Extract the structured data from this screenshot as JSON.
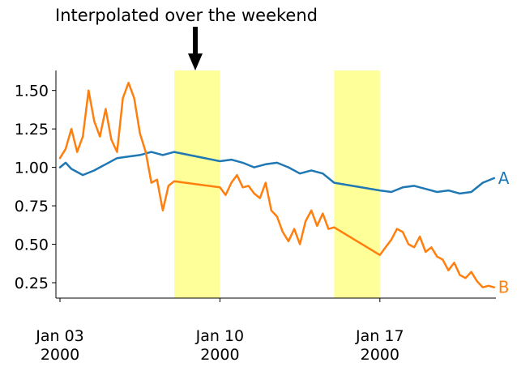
{
  "chart_data": {
    "type": "line",
    "annotation": {
      "text": "Interpolated over the weekend",
      "points_to": "2000-01-08"
    },
    "x_range": [
      "2000-01-03",
      "2000-01-22"
    ],
    "ylim": [
      0.15,
      1.63
    ],
    "yticks": [
      0.25,
      0.5,
      0.75,
      1.0,
      1.25,
      1.5
    ],
    "ytick_labels": [
      "0.25",
      "0.50",
      "0.75",
      "1.00",
      "1.25",
      "1.50"
    ],
    "xticks": [
      {
        "x": "2000-01-03",
        "line1": "Jan 03",
        "line2": "2000"
      },
      {
        "x": "2000-01-10",
        "line1": "Jan 10",
        "line2": "2000"
      },
      {
        "x": "2000-01-17",
        "line1": "Jan 17",
        "line2": "2000"
      }
    ],
    "shaded_ranges": [
      {
        "start": "2000-01-08",
        "end": "2000-01-10",
        "color": "#ffff99"
      },
      {
        "start": "2000-01-15",
        "end": "2000-01-17",
        "color": "#ffff99"
      }
    ],
    "series": [
      {
        "name": "A",
        "color": "#1f77b4",
        "x": [
          "2000-01-03",
          "2000-01-03 06:00",
          "2000-01-03 12:00",
          "2000-01-04",
          "2000-01-04 12:00",
          "2000-01-05",
          "2000-01-05 12:00",
          "2000-01-06",
          "2000-01-06 12:00",
          "2000-01-07",
          "2000-01-07 12:00",
          "2000-01-08",
          "2000-01-10",
          "2000-01-10 12:00",
          "2000-01-11",
          "2000-01-11 12:00",
          "2000-01-12",
          "2000-01-12 12:00",
          "2000-01-13",
          "2000-01-13 12:00",
          "2000-01-14",
          "2000-01-14 12:00",
          "2000-01-15",
          "2000-01-17",
          "2000-01-17 12:00",
          "2000-01-18",
          "2000-01-18 12:00",
          "2000-01-19",
          "2000-01-19 12:00",
          "2000-01-20",
          "2000-01-20 12:00",
          "2000-01-21",
          "2000-01-21 12:00",
          "2000-01-22"
        ],
        "values": [
          1.0,
          1.03,
          0.99,
          0.95,
          0.98,
          1.02,
          1.06,
          1.07,
          1.08,
          1.1,
          1.08,
          1.1,
          1.04,
          1.05,
          1.03,
          1.0,
          1.02,
          1.03,
          1.0,
          0.96,
          0.98,
          0.96,
          0.9,
          0.85,
          0.84,
          0.87,
          0.88,
          0.86,
          0.84,
          0.85,
          0.83,
          0.84,
          0.9,
          0.93
        ]
      },
      {
        "name": "B",
        "color": "#ff7f0e",
        "x": [
          "2000-01-03",
          "2000-01-03 06:00",
          "2000-01-03 12:00",
          "2000-01-03 18:00",
          "2000-01-04",
          "2000-01-04 06:00",
          "2000-01-04 12:00",
          "2000-01-04 18:00",
          "2000-01-05",
          "2000-01-05 06:00",
          "2000-01-05 12:00",
          "2000-01-05 18:00",
          "2000-01-06",
          "2000-01-06 06:00",
          "2000-01-06 12:00",
          "2000-01-06 18:00",
          "2000-01-07",
          "2000-01-07 06:00",
          "2000-01-07 12:00",
          "2000-01-07 18:00",
          "2000-01-08",
          "2000-01-10",
          "2000-01-10 06:00",
          "2000-01-10 12:00",
          "2000-01-10 18:00",
          "2000-01-11",
          "2000-01-11 06:00",
          "2000-01-11 12:00",
          "2000-01-11 18:00",
          "2000-01-12",
          "2000-01-12 06:00",
          "2000-01-12 12:00",
          "2000-01-12 18:00",
          "2000-01-13",
          "2000-01-13 06:00",
          "2000-01-13 12:00",
          "2000-01-13 18:00",
          "2000-01-14",
          "2000-01-14 06:00",
          "2000-01-14 12:00",
          "2000-01-14 18:00",
          "2000-01-15",
          "2000-01-17",
          "2000-01-17 06:00",
          "2000-01-17 12:00",
          "2000-01-17 18:00",
          "2000-01-18",
          "2000-01-18 06:00",
          "2000-01-18 12:00",
          "2000-01-18 18:00",
          "2000-01-19",
          "2000-01-19 06:00",
          "2000-01-19 12:00",
          "2000-01-19 18:00",
          "2000-01-20",
          "2000-01-20 06:00",
          "2000-01-20 12:00",
          "2000-01-20 18:00",
          "2000-01-21",
          "2000-01-21 06:00",
          "2000-01-21 12:00",
          "2000-01-21 18:00",
          "2000-01-22"
        ],
        "values": [
          1.06,
          1.12,
          1.25,
          1.1,
          1.2,
          1.5,
          1.3,
          1.2,
          1.38,
          1.18,
          1.1,
          1.45,
          1.55,
          1.45,
          1.22,
          1.1,
          0.9,
          0.92,
          0.72,
          0.88,
          0.91,
          0.87,
          0.82,
          0.9,
          0.95,
          0.87,
          0.88,
          0.83,
          0.8,
          0.9,
          0.72,
          0.68,
          0.58,
          0.52,
          0.6,
          0.5,
          0.65,
          0.72,
          0.62,
          0.7,
          0.6,
          0.61,
          0.43,
          0.48,
          0.53,
          0.6,
          0.58,
          0.5,
          0.48,
          0.55,
          0.45,
          0.48,
          0.42,
          0.4,
          0.33,
          0.38,
          0.3,
          0.28,
          0.32,
          0.26,
          0.22,
          0.23,
          0.22
        ]
      }
    ]
  }
}
